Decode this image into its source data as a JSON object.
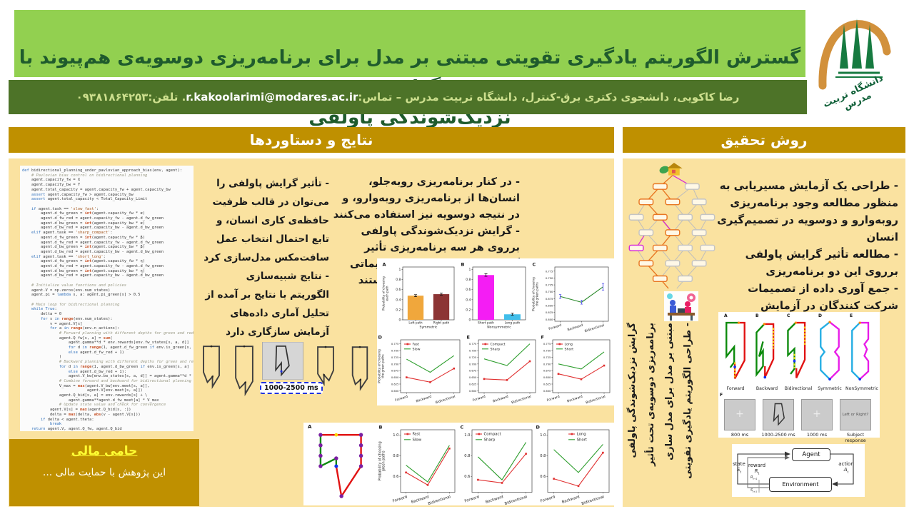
{
  "poster": {
    "title": "گسترش الگوریتم یادگیری تقویتی مبتنی بر مدل برای برنامه‌ریزی دوسویه‌ی هم‌پیوند با گرایش\nنزدیک‌شوندگی پاولفی",
    "author_line": "رضا کاکویی، دانشجوی دکتری برق-کنترل، دانشگاه تربیت مدرس – تماس:",
    "email": "r.kakoolarimi@modares.ac.ir",
    "phone_suffix": ". تلفن:۰۹۳۸۱۸۶۴۲۵۳",
    "logo_caption": "دانشگاه تربیت مدرس"
  },
  "results_panel": {
    "header": "نتایج و دستاوردها",
    "bullets_primary": "- در کنار برنامه‌ریزی روبه‌جلو، انسان‌ها از برنامه‌ریزی روبه‌وارو، و در نتیجه دوسویه نیز استفاده می‌کنند\n- گرایش نزدیک‌شوندگی پاولفی برروی هر سه برنامه‌ریزی تأثیر گذاشته و منجر به اتخاذ تصمیماتی می‌شود که لزوما بهینه‌تر نیستند",
    "bullets_secondary": "- تأثیر گرایش پاولفی را\nمی‌توان در قالب ظرفیت\nحافظه‌ی کاری انسان، و\nتابع احتمال انتخاب عمل\nسافت‌مکس مدل‌سازی کرد\n- نتایج شبیه‌سازی\nالگوریتم با نتایج بر آمده از\nتحلیل آماری داده‌های\nآزمایش سازگاری دارد",
    "stimulus_duration_label": "1000-2500 ms",
    "bottom_fig_letter": "A"
  },
  "method_panel": {
    "header": "روش تحقیق",
    "bullets": "- طراحی یک آزمایش مسیریابی به\nمنظور مطالعه وجود برنامه‌ریزی\nروبه‌وارو و دوسویه در تصمیم‌گیری\nانسان\n- مطالعه تأثیر گرایش پاولفی\nبرروی این دو برنامه‌ریزی\n- جمع آوری داده از تصمیمات\nشرکت کنندگانِ در آزمایش",
    "vertical_note_lines": [
      "- طراحی الگوریتم یادگیری تقویتی",
      "مبتنی بر مدل برای مدل سازی",
      "برنامه‌ریزی دوسویه‌ی تحت تأثیر",
      "گرایش نزدیک‌شوندگی پاولفی"
    ],
    "maze_letters": [
      "A",
      "B",
      "C",
      "D",
      "E"
    ],
    "maze_labels": [
      "Forward",
      "Backward",
      "Bidirectional",
      "Symmetric",
      "NonSymmetric"
    ],
    "trial_letter": "F",
    "trial_frames": [
      {
        "content": "+",
        "caption": "800 ms"
      },
      {
        "content": "shape",
        "caption": "1000-2500 ms"
      },
      {
        "content": "+",
        "caption": "1000 ms"
      },
      {
        "content": "Left or Right?",
        "caption": "Subject response"
      }
    ],
    "rl_diagram": {
      "agent": "Agent",
      "environment": "Environment",
      "state": "state",
      "state_sym": "S",
      "state_sub": "t",
      "reward": "reward",
      "reward_sym": "R",
      "reward_sub": "t",
      "action": "action",
      "action_sym": "A",
      "action_sub": "t",
      "reward_next_sym": "R",
      "reward_next_sub": "t+1",
      "state_next_sym": "S",
      "state_next_sub": "t+1"
    }
  },
  "sponsor": {
    "title": "حامی مالی",
    "text": "این پژوهش با حمایت مالی ..."
  },
  "code": {
    "lines": [
      "def bidirectional_planning_under_pavlovian_approach_bias(env, agent):",
      "    # Pavlovian bias control on bidirectional planning",
      "    agent.capacity_fw = X",
      "    agent.capacity_bw = Y",
      "    agent.total_capacity = agent.capacity_fw + agent.capacity_bw",
      "    assert agent.capacity_fw > agent.capacity_bw",
      "    assert agent.total_capacity < Total_Capacity_Limit",
      "",
      "    if agent.task == 'slow_fast':",
      "        agent.d_fw_green = int(agent.capacity_fw * α)",
      "        agent.d_fw_red = agent.capacity_fw - agent.d_fw_green",
      "        agent.d_bw_green = int(agent.capacity_bw * α)",
      "        agent.d_bw_red = agent.capacity_bw - agent.d_bw_green",
      "    elif agent.task == 'sharp_compact':",
      "        agent.d_fw_green = int(agent.capacity_fw * β)",
      "        agent.d_fw_red = agent.capacity_fw - agent.d_fw_green",
      "        agent.d_bw_green = int(agent.capacity_bw * β)",
      "        agent.d_bw_red = agent.capacity_bw - agent.d_bw_green",
      "    elif agent.task == 'short_long':",
      "        agent.d_fw_green = int(agent.capacity_fw * η)",
      "        agent.d_fw_red = agent.capacity_fw - agent.d_fw_green",
      "        agent.d_bw_green = int(agent.capacity_bw * η)",
      "        agent.d_bw_red = agent.capacity_bw - agent.d_bw_green",
      "",
      "    # Initialize value functions and policies",
      "    agent.V = np.zeros(env.num_states)",
      "    agent.pi = lambda s, a: agent.pi_green[s] > 0.5",
      "",
      "    # Main loop for bidirectional planning",
      "    while True:",
      "        delta = 0",
      "        for s in range(env.num_states):",
      "            v = agent.V[s]",
      "            for a in range(env.n_actions):",
      "                # Forward planning with different depths for green and red paths",
      "                agent.Q_fw[s, a] = sum(",
      "                    agent.gamma**d * env.rewards[env.fw_states[s, a, d]]",
      "                    for d in range(1, agent.d_fw_green if env.is_green[s, a]",
      "                    else agent.d_fw_red + 1)",
      "                )",
      "                # Backward planning with different depths for green and red paths",
      "                for d in range(1, agent.d_bw_green if env.is_green[s, a]",
      "                    else agent.d_bw_red + 1):",
      "                    agent.V_bw[env.bw_states[s, a, d]] = agent.gamma**d * env.r_goal",
      "                # Combine forward and backward for bidirectional planning",
      "                V_max = max(agent.V_bw[env.meet[s, a]],",
      "                            agent.V[env.meet[s, a]])",
      "                agent.Q_bid[s, a] = env.rewards[s] + \\",
      "                    agent.gamma**agent.d_fw_meet[a] * V_max",
      "                # Update state value and check for convergence",
      "            agent.V[s] = max(agent.Q_bid[s, :])",
      "            delta = max(delta, abs(v - agent.V[s]))",
      "        if delta < agent.theta:",
      "            break",
      "    return agent.V, agent.Q_fw, agent.Q_bid"
    ]
  },
  "chart_data": [
    {
      "panel": "A",
      "type": "bar",
      "ml": 30,
      "ylabel": [
        "Probability of choosing",
        "each path"
      ],
      "xlabel": "Symmetric",
      "categories": [
        "Left path",
        "Right path"
      ],
      "values": [
        0.48,
        0.51
      ],
      "errors": [
        0.02,
        0.02
      ],
      "colors": [
        "#F0A73C",
        "#8C3434"
      ],
      "ylim": [
        0,
        1.05
      ],
      "yticks": [
        0,
        0.2,
        0.4,
        0.6,
        0.8,
        1
      ],
      "ytick_labels": [
        "0",
        "0.2",
        "0.4",
        "0.6",
        "0.8",
        "1"
      ]
    },
    {
      "panel": "B",
      "type": "bar",
      "ml": 18,
      "xlabel": "Nonsymmetric",
      "categories": [
        "Short path",
        "Long path"
      ],
      "values": [
        0.89,
        0.11
      ],
      "errors": [
        0.025,
        0.02
      ],
      "colors": [
        "#F41DF4",
        "#41BEEA"
      ],
      "ylim": [
        0,
        1.05
      ],
      "yticks": [
        0,
        0.2,
        0.4,
        0.6,
        0.8,
        1
      ],
      "ytick_labels": [
        "0",
        "0.2",
        "0.4",
        "0.6",
        "0.8",
        "1"
      ]
    },
    {
      "panel": "C",
      "type": "line",
      "ml": 33,
      "ylabel": [
        "Probability of choosing",
        "the green paths"
      ],
      "categories": [
        "Forward",
        "Backward",
        "Bidirectional"
      ],
      "ylim": [
        0.593,
        0.79
      ],
      "yticks": [
        0.6,
        0.625,
        0.65,
        0.675,
        0.7,
        0.725,
        0.75,
        0.775
      ],
      "ytick_labels": [
        "0.600",
        "0.625",
        "0.650",
        "0.675",
        "0.700",
        "0.725",
        "0.750",
        "0.775"
      ],
      "series": [
        {
          "name": "",
          "color": "#2E8B2E",
          "values": [
            0.683,
            0.662,
            0.718
          ],
          "errors": [
            0.007,
            0.007,
            0.012
          ],
          "error_color": "#6666EE"
        }
      ]
    },
    {
      "panel": "D",
      "type": "line",
      "ml": 33,
      "ylabel": [
        "Probability of choosing",
        "the green paths"
      ],
      "categories": [
        "Forward",
        "Backward",
        "Bidirectional"
      ],
      "ylim": [
        0.593,
        0.79
      ],
      "yticks": [
        0.6,
        0.625,
        0.65,
        0.675,
        0.7,
        0.725,
        0.75,
        0.775
      ],
      "ytick_labels": [
        "0.600",
        "0.625",
        "0.650",
        "0.675",
        "0.700",
        "0.725",
        "0.750",
        "0.775"
      ],
      "series": [
        {
          "name": "Fast",
          "color": "#E03030",
          "marker": true,
          "values": [
            0.65,
            0.632,
            0.683
          ]
        },
        {
          "name": "Slow",
          "color": "#2E9E2E",
          "values": [
            0.718,
            0.669,
            0.731
          ]
        }
      ]
    },
    {
      "panel": "E",
      "type": "line",
      "ml": 18,
      "categories": [
        "Forward",
        "Backward",
        "Bidirectional"
      ],
      "ylim": [
        0.593,
        0.79
      ],
      "yticks": [
        0.6,
        0.625,
        0.65,
        0.675,
        0.7,
        0.725,
        0.75,
        0.775
      ],
      "ytick_labels": [
        "0.600",
        "0.625",
        "0.650",
        "0.675",
        "0.700",
        "0.725",
        "0.750",
        "0.775"
      ],
      "series": [
        {
          "name": "Compact",
          "color": "#E03030",
          "marker": true,
          "values": [
            0.644,
            0.64,
            0.71
          ]
        },
        {
          "name": "Sharp",
          "color": "#2E9E2E",
          "values": [
            0.719,
            0.694,
            0.775
          ]
        }
      ]
    },
    {
      "panel": "F",
      "type": "line",
      "ml": 18,
      "categories": [
        "Forward",
        "Backward",
        "Bidirectional"
      ],
      "ylim": [
        0.593,
        0.79
      ],
      "yticks": [
        0.6,
        0.625,
        0.65,
        0.675,
        0.7,
        0.725,
        0.75,
        0.775
      ],
      "ytick_labels": [
        "0.600",
        "0.625",
        "0.650",
        "0.675",
        "0.700",
        "0.725",
        "0.750",
        "0.775"
      ],
      "series": [
        {
          "name": "Long",
          "color": "#E03030",
          "marker": true,
          "values": [
            0.663,
            0.643,
            0.694
          ]
        },
        {
          "name": "Short",
          "color": "#2E9E2E",
          "values": [
            0.7,
            0.681,
            0.745
          ]
        }
      ]
    },
    {
      "panel": "B",
      "type": "line",
      "ml": 32,
      "fs": 1.15,
      "ylabel": [
        "Probability of choosing",
        "green paths"
      ],
      "categories": [
        "Forward",
        "Backward",
        "Bidirectional"
      ],
      "ylim": [
        0.45,
        1.05
      ],
      "yticks": [
        0.6,
        0.8,
        1.0
      ],
      "ytick_labels": [
        "0.6",
        "0.8",
        "1.0"
      ],
      "series": [
        {
          "name": "Fast",
          "color": "#E03030",
          "marker": true,
          "values": [
            0.64,
            0.52,
            0.87
          ]
        },
        {
          "name": "Slow",
          "color": "#2E9E2E",
          "values": [
            0.71,
            0.55,
            0.9
          ]
        }
      ]
    },
    {
      "panel": "C",
      "type": "line",
      "ml": 18,
      "fs": 1.15,
      "categories": [
        "Forward",
        "Backward",
        "Bidirectional"
      ],
      "ylim": [
        0.45,
        1.05
      ],
      "yticks": [
        0.6,
        0.8,
        1.0
      ],
      "ytick_labels": [
        "0.6",
        "0.8",
        "1.0"
      ],
      "series": [
        {
          "name": "Compact",
          "color": "#E03030",
          "marker": true,
          "values": [
            0.57,
            0.54,
            0.82
          ]
        },
        {
          "name": "Sharp",
          "color": "#2E9E2E",
          "values": [
            0.79,
            0.57,
            0.93
          ]
        }
      ]
    },
    {
      "panel": "D",
      "type": "line",
      "ml": 18,
      "fs": 1.15,
      "lx": 0.28,
      "categories": [
        "Forward",
        "Backward",
        "Bidirectional"
      ],
      "ylim": [
        0.45,
        1.05
      ],
      "yticks": [
        0.6,
        0.8,
        1.0
      ],
      "ytick_labels": [
        "0.6",
        "0.8",
        "1.0"
      ],
      "series": [
        {
          "name": "Long",
          "color": "#E03030",
          "marker": true,
          "values": [
            0.58,
            0.51,
            0.83
          ]
        },
        {
          "name": "Short",
          "color": "#2E9E2E",
          "values": [
            0.86,
            0.64,
            0.91
          ]
        }
      ]
    }
  ]
}
